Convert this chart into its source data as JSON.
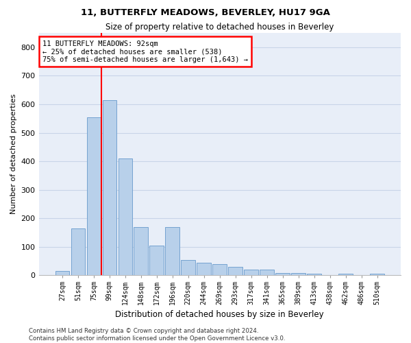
{
  "title": "11, BUTTERFLY MEADOWS, BEVERLEY, HU17 9GA",
  "subtitle": "Size of property relative to detached houses in Beverley",
  "xlabel": "Distribution of detached houses by size in Beverley",
  "ylabel": "Number of detached properties",
  "categories": [
    "27sqm",
    "51sqm",
    "75sqm",
    "99sqm",
    "124sqm",
    "148sqm",
    "172sqm",
    "196sqm",
    "220sqm",
    "244sqm",
    "269sqm",
    "293sqm",
    "317sqm",
    "341sqm",
    "365sqm",
    "389sqm",
    "413sqm",
    "438sqm",
    "462sqm",
    "486sqm",
    "510sqm"
  ],
  "values": [
    15,
    165,
    555,
    615,
    410,
    170,
    105,
    170,
    55,
    45,
    40,
    30,
    20,
    20,
    8,
    8,
    5,
    0,
    5,
    0,
    5
  ],
  "bar_color": "#b8d0ea",
  "bar_edgecolor": "#6699cc",
  "vline_color": "red",
  "vline_x": 2.5,
  "annotation_text": "11 BUTTERFLY MEADOWS: 92sqm\n← 25% of detached houses are smaller (538)\n75% of semi-detached houses are larger (1,643) →",
  "ylim": [
    0,
    850
  ],
  "yticks": [
    0,
    100,
    200,
    300,
    400,
    500,
    600,
    700,
    800
  ],
  "grid_color": "#c8d4e8",
  "background_color": "#e8eef8",
  "footer": "Contains HM Land Registry data © Crown copyright and database right 2024.\nContains public sector information licensed under the Open Government Licence v3.0."
}
